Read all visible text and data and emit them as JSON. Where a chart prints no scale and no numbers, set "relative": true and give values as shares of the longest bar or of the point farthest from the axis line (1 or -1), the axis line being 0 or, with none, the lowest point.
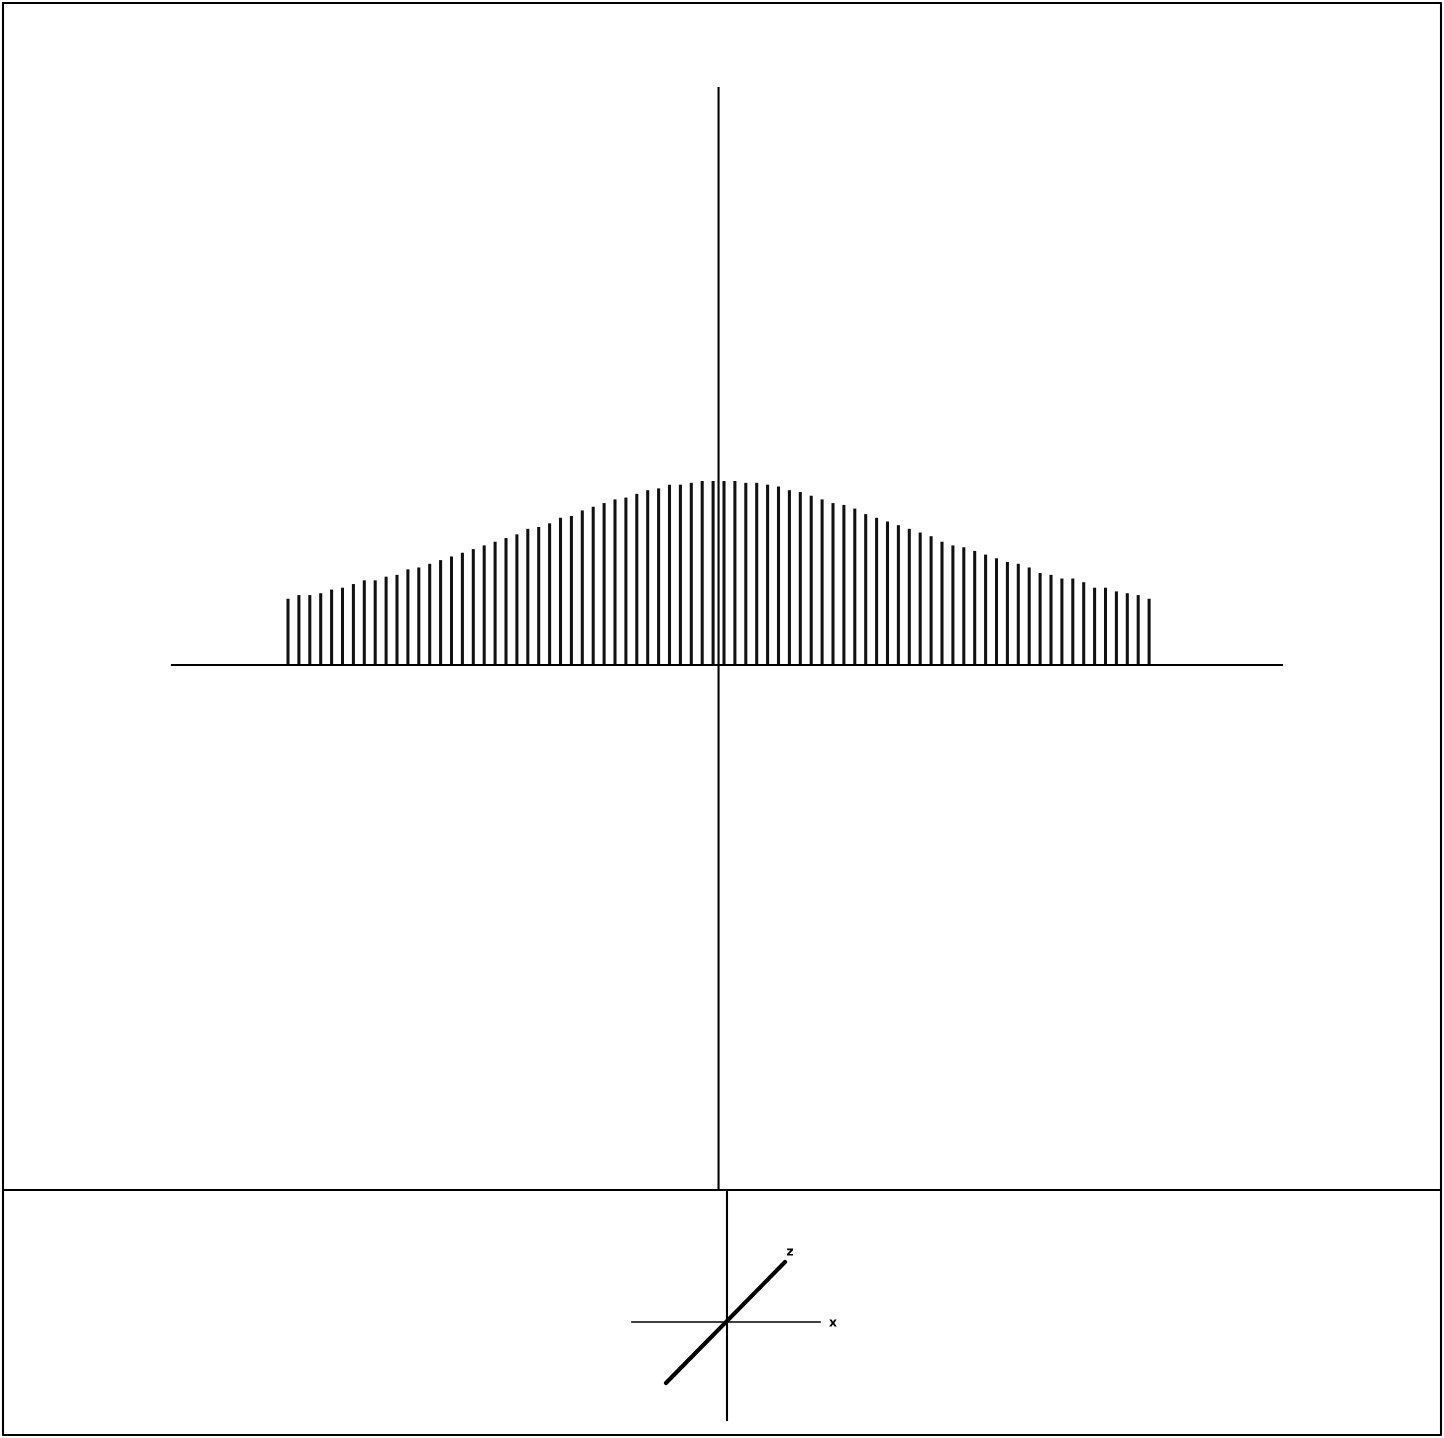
{
  "chart_data": {
    "type": "bar",
    "relative": true,
    "color": "#111111",
    "categories": [
      null,
      null,
      null,
      null,
      null,
      null,
      null,
      null,
      null,
      null,
      null,
      null,
      null,
      null,
      null,
      null,
      null,
      null,
      null,
      null,
      null,
      null,
      null,
      null,
      null,
      null,
      null,
      null,
      null,
      null,
      null,
      null,
      null,
      null,
      null,
      null,
      null,
      null,
      null,
      null,
      null,
      null,
      null,
      null,
      null,
      null,
      null,
      null,
      null,
      null,
      null,
      null,
      null,
      null,
      null,
      null,
      null,
      null,
      null,
      null,
      null,
      null,
      null,
      null,
      null,
      null,
      null,
      null,
      null,
      null,
      null,
      null,
      null,
      null,
      null,
      null,
      null,
      null,
      null,
      null
    ],
    "values": [
      0.36,
      0.38,
      0.38,
      0.39,
      0.41,
      0.42,
      0.44,
      0.46,
      0.46,
      0.48,
      0.49,
      0.52,
      0.53,
      0.55,
      0.57,
      0.59,
      0.61,
      0.63,
      0.65,
      0.67,
      0.69,
      0.71,
      0.74,
      0.75,
      0.77,
      0.8,
      0.81,
      0.84,
      0.86,
      0.88,
      0.9,
      0.91,
      0.93,
      0.95,
      0.96,
      0.98,
      0.98,
      0.99,
      1,
      1,
      1,
      1,
      0.99,
      0.99,
      0.98,
      0.97,
      0.95,
      0.94,
      0.92,
      0.9,
      0.88,
      0.87,
      0.85,
      0.82,
      0.8,
      0.78,
      0.76,
      0.74,
      0.72,
      0.7,
      0.67,
      0.65,
      0.64,
      0.62,
      0.6,
      0.58,
      0.56,
      0.55,
      0.53,
      0.5,
      0.49,
      0.47,
      0.47,
      0.45,
      0.42,
      0.42,
      0.4,
      0.39,
      0.38,
      0.36
    ],
    "annotations": [
      "z",
      "x"
    ]
  }
}
